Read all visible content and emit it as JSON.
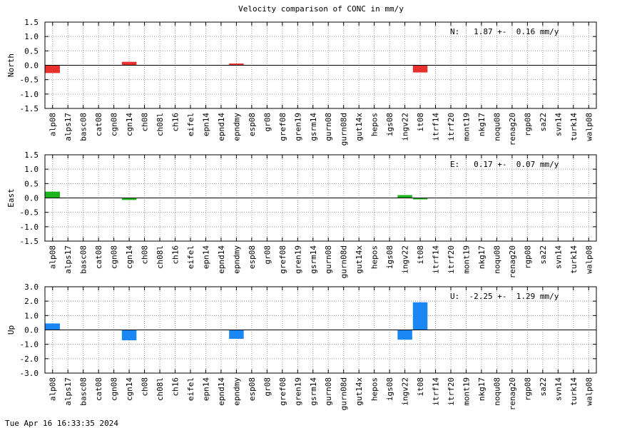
{
  "title": "Velocity comparison of CONC in mm/y",
  "footer": "Tue Apr 16 16:33:35 2024",
  "chart_data": [
    {
      "type": "bar",
      "ylabel": "North",
      "color": "#e8302c",
      "ylim": [
        -1.5,
        1.5
      ],
      "yticks": [
        "1.5",
        "1.0",
        "0.5",
        "0.0",
        "-0.5",
        "-1.0",
        "-1.5"
      ],
      "annotation": "N:   1.87 +-  0.16 mm/y",
      "categories": [
        "alp08",
        "alps17",
        "basc08",
        "cat08",
        "cgn08",
        "cgn14",
        "ch08",
        "ch08l",
        "ch16",
        "eifel",
        "epn14",
        "epnd14",
        "epndmy",
        "esp08",
        "gr08",
        "gref08",
        "gren19",
        "gsrm14",
        "gurn08",
        "gurn08d",
        "gut14x",
        "hepos",
        "igs08",
        "ingv22",
        "it08",
        "itrf14",
        "itrf20",
        "mont19",
        "nkg17",
        "noqu08",
        "renag20",
        "rgp08",
        "sa22",
        "svn14",
        "turk14",
        "walp08"
      ],
      "values": [
        -0.27,
        0,
        0,
        0,
        0,
        0.12,
        0,
        0,
        0,
        0,
        0,
        0,
        0.06,
        0,
        0,
        0,
        0,
        0,
        0,
        0,
        0,
        0,
        0,
        0,
        -0.25,
        0,
        0,
        0,
        0,
        0,
        0,
        0,
        0,
        0,
        0,
        0
      ]
    },
    {
      "type": "bar",
      "ylabel": "East",
      "color": "#1db31d",
      "ylim": [
        -1.5,
        1.5
      ],
      "yticks": [
        "1.5",
        "1.0",
        "0.5",
        "0.0",
        "-0.5",
        "-1.0",
        "-1.5"
      ],
      "annotation": "E:   0.17 +-  0.07 mm/y",
      "categories": [
        "alp08",
        "alps17",
        "basc08",
        "cat08",
        "cgn08",
        "cgn14",
        "ch08",
        "ch08l",
        "ch16",
        "eifel",
        "epn14",
        "epnd14",
        "epndmy",
        "esp08",
        "gr08",
        "gref08",
        "gren19",
        "gsrm14",
        "gurn08",
        "gurn08d",
        "gut14x",
        "hepos",
        "igs08",
        "ingv22",
        "it08",
        "itrf14",
        "itrf20",
        "mont19",
        "nkg17",
        "noqu08",
        "renag20",
        "rgp08",
        "sa22",
        "svn14",
        "turk14",
        "walp08"
      ],
      "values": [
        0.22,
        0,
        0,
        0,
        0,
        -0.07,
        0,
        0,
        0,
        0,
        0,
        0,
        0,
        0,
        0,
        0,
        0,
        0,
        0,
        0,
        0,
        0,
        0,
        0.1,
        -0.05,
        0,
        0,
        0,
        0,
        0,
        0,
        0,
        0,
        0,
        0,
        0
      ]
    },
    {
      "type": "bar",
      "ylabel": "Up",
      "color": "#1a87f5",
      "ylim": [
        -3.0,
        3.0
      ],
      "yticks": [
        "3.0",
        "2.0",
        "1.0",
        "0.0",
        "-1.0",
        "-2.0",
        "-3.0"
      ],
      "annotation": "U:  -2.25 +-  1.29 mm/y",
      "categories": [
        "alp08",
        "alps17",
        "basc08",
        "cat08",
        "cgn08",
        "cgn14",
        "ch08",
        "ch08l",
        "ch16",
        "eifel",
        "epn14",
        "epnd14",
        "epndmy",
        "esp08",
        "gr08",
        "gref08",
        "gren19",
        "gsrm14",
        "gurn08",
        "gurn08d",
        "gut14x",
        "hepos",
        "igs08",
        "ingv22",
        "it08",
        "itrf14",
        "itrf20",
        "mont19",
        "nkg17",
        "noqu08",
        "renag20",
        "rgp08",
        "sa22",
        "svn14",
        "turk14",
        "walp08"
      ],
      "values": [
        0.45,
        0,
        0,
        0,
        0,
        -0.72,
        0,
        0,
        0,
        0,
        0,
        0,
        -0.62,
        0,
        0,
        0,
        0,
        0,
        0,
        0,
        0,
        0,
        0,
        -0.68,
        1.92,
        0,
        0,
        0,
        0,
        0,
        0,
        0,
        0,
        0,
        0,
        0
      ]
    }
  ]
}
